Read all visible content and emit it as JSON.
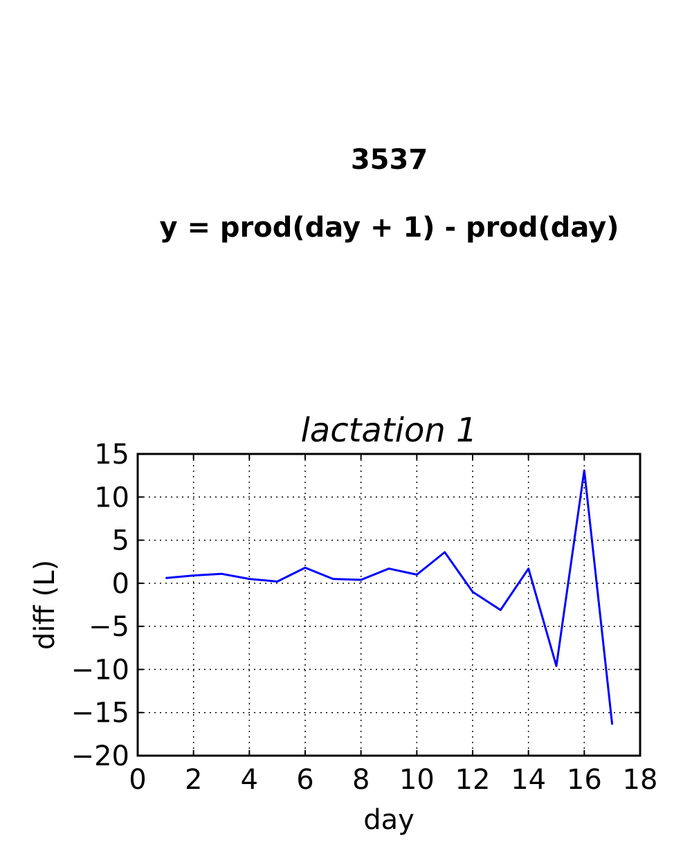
{
  "figure": {
    "title_line1": "3537",
    "title_line2": "y = prod(day + 1) - prod(day)"
  },
  "chart_data": {
    "type": "line",
    "title": "lactation 1",
    "xlabel": "day",
    "ylabel": "diff (L)",
    "xlim": [
      0,
      18
    ],
    "ylim": [
      -20,
      15
    ],
    "xticks": [
      0,
      2,
      4,
      6,
      8,
      10,
      12,
      14,
      16,
      18
    ],
    "yticks": [
      15,
      10,
      5,
      0,
      -5,
      -10,
      -15,
      -20
    ],
    "xtick_labels": [
      "0",
      "2",
      "4",
      "6",
      "8",
      "10",
      "12",
      "14",
      "16",
      "18"
    ],
    "ytick_labels": [
      "15",
      "10",
      "5",
      "0",
      "−5",
      "−10",
      "−15",
      "−20"
    ],
    "grid": true,
    "series": [
      {
        "color": "#0000ff",
        "x": [
          1,
          2,
          3,
          4,
          5,
          6,
          7,
          8,
          9,
          10,
          11,
          12,
          13,
          14,
          15,
          16,
          17
        ],
        "y": [
          0.6,
          0.9,
          1.1,
          0.5,
          0.2,
          1.8,
          0.5,
          0.4,
          1.7,
          1.0,
          3.6,
          -1.0,
          -3.1,
          1.7,
          -9.6,
          13.1,
          -16.4
        ]
      }
    ]
  }
}
